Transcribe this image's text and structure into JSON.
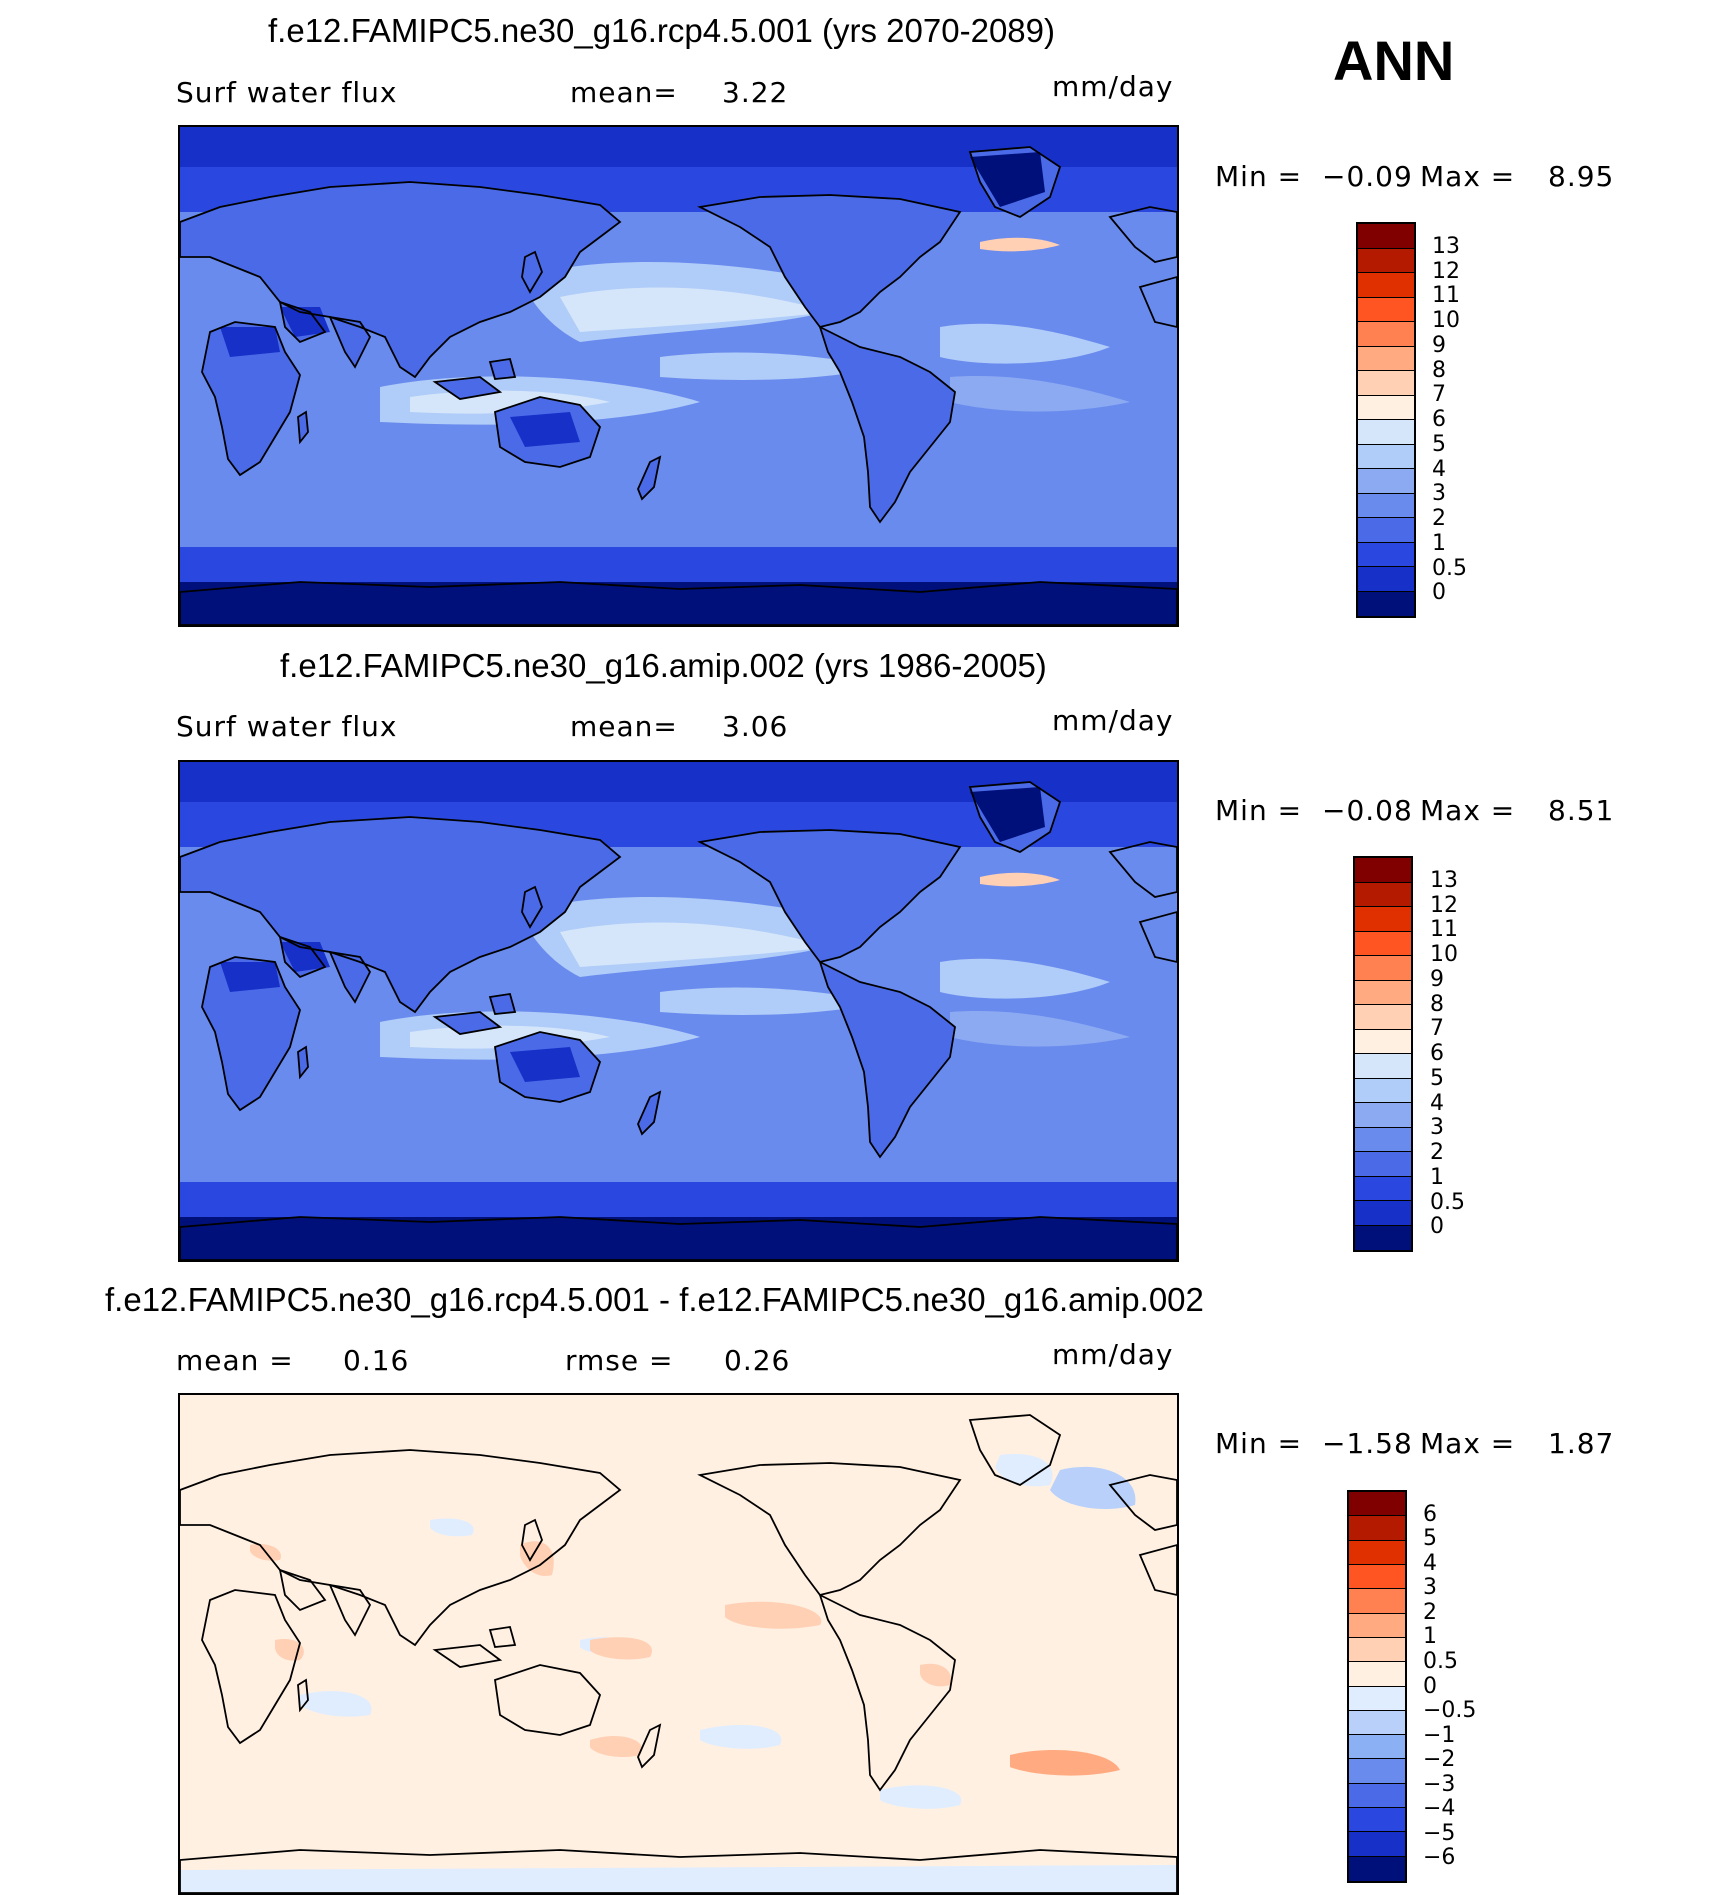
{
  "season": "ANN",
  "panels": [
    {
      "title": "f.e12.FAMIPC5.ne30_g16.rcp4.5.001 (yrs 2070-2089)",
      "left_label": "Surf water flux",
      "mid_label": "mean=",
      "mid_value": "3.22",
      "units": "mm/day",
      "min_label": "Min =",
      "min_value": "−0.09",
      "max_label": "Max =",
      "max_value": "8.95",
      "colorbar": {
        "labels": [
          "13",
          "12",
          "11",
          "10",
          "9",
          "8",
          "7",
          "6",
          "5",
          "4",
          "3",
          "2",
          "1",
          "0.5",
          "0"
        ],
        "colors": [
          "#800000",
          "#b31a00",
          "#e03000",
          "#ff5522",
          "#ff8050",
          "#ffaa80",
          "#ffd0b4",
          "#fff0e2",
          "#d5e6fa",
          "#b0ccf8",
          "#8caaf2",
          "#6a8bee",
          "#4a6ae8",
          "#2a48e0",
          "#1630c8",
          "#00107a"
        ]
      },
      "map_type": "field_absolute"
    },
    {
      "title": "f.e12.FAMIPC5.ne30_g16.amip.002 (yrs 1986-2005)",
      "left_label": "Surf water flux",
      "mid_label": "mean=",
      "mid_value": "3.06",
      "units": "mm/day",
      "min_label": "Min =",
      "min_value": "−0.08",
      "max_label": "Max =",
      "max_value": "8.51",
      "colorbar": {
        "labels": [
          "13",
          "12",
          "11",
          "10",
          "9",
          "8",
          "7",
          "6",
          "5",
          "4",
          "3",
          "2",
          "1",
          "0.5",
          "0"
        ],
        "colors": [
          "#800000",
          "#b31a00",
          "#e03000",
          "#ff5522",
          "#ff8050",
          "#ffaa80",
          "#ffd0b4",
          "#fff0e2",
          "#d5e6fa",
          "#b0ccf8",
          "#8caaf2",
          "#6a8bee",
          "#4a6ae8",
          "#2a48e0",
          "#1630c8",
          "#00107a"
        ]
      },
      "map_type": "field_absolute"
    },
    {
      "title": "f.e12.FAMIPC5.ne30_g16.rcp4.5.001 - f.e12.FAMIPC5.ne30_g16.amip.002",
      "left_label": "mean =",
      "left_value": "0.16",
      "mid_label": "rmse =",
      "mid_value": "0.26",
      "units": "mm/day",
      "min_label": "Min =",
      "min_value": "−1.58",
      "max_label": "Max =",
      "max_value": "1.87",
      "colorbar": {
        "labels": [
          "6",
          "5",
          "4",
          "3",
          "2",
          "1",
          "0.5",
          "0",
          "−0.5",
          "−1",
          "−2",
          "−3",
          "−4",
          "−5",
          "−6"
        ],
        "colors": [
          "#800000",
          "#b31a00",
          "#e03000",
          "#ff5522",
          "#ff8050",
          "#ffaa80",
          "#ffd0b4",
          "#fff0e2",
          "#e0edff",
          "#b8d0fa",
          "#8cb0f4",
          "#6a8bee",
          "#4a6ae8",
          "#2a48e0",
          "#1630c8",
          "#00107a"
        ]
      },
      "map_type": "field_difference"
    }
  ]
}
